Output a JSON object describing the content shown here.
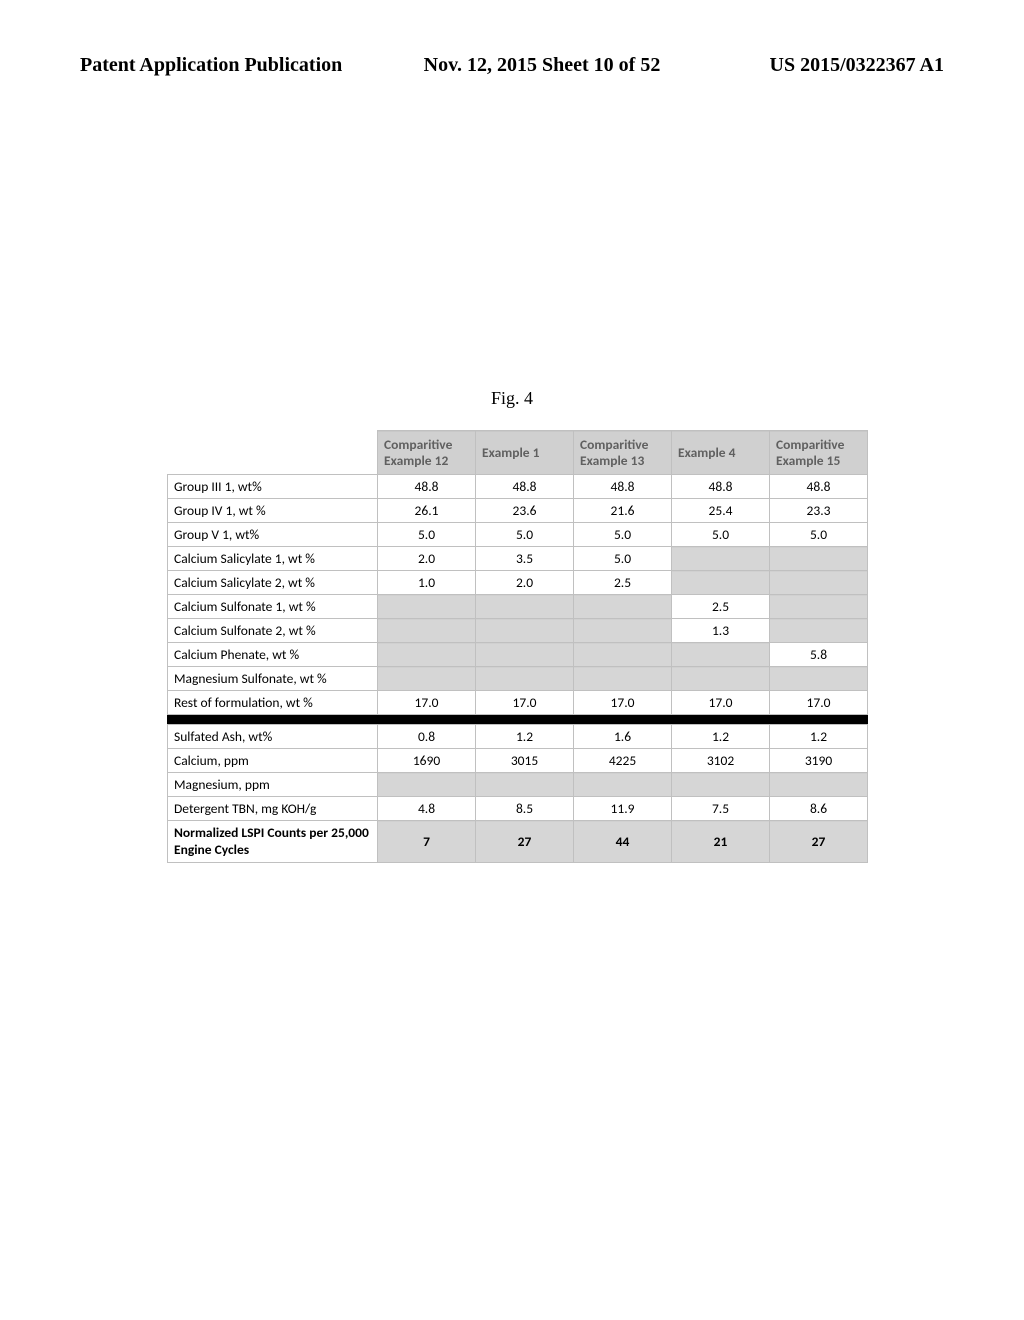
{
  "header": {
    "left": "Patent Application Publication",
    "center": "Nov. 12, 2015  Sheet 10 of 52",
    "right": "US 2015/0322367 A1"
  },
  "figure_caption": "Fig. 4",
  "table": {
    "columns": [
      {
        "label": ""
      },
      {
        "label": "Comparitive Example 12"
      },
      {
        "label": "Example 1"
      },
      {
        "label": "Comparitive Example 13"
      },
      {
        "label": "Example 4"
      },
      {
        "label": "Comparitive Example 15"
      }
    ],
    "rows": [
      {
        "label": "Group III 1, wt%",
        "cells": [
          "48.8",
          "48.8",
          "48.8",
          "48.8",
          "48.8"
        ]
      },
      {
        "label": "Group IV 1, wt %",
        "cells": [
          "26.1",
          "23.6",
          "21.6",
          "25.4",
          "23.3"
        ]
      },
      {
        "label": "Group V 1, wt%",
        "cells": [
          "5.0",
          "5.0",
          "5.0",
          "5.0",
          "5.0"
        ]
      },
      {
        "label": "Calcium Salicylate 1, wt %",
        "cells": [
          "2.0",
          "3.5",
          "5.0",
          null,
          null
        ]
      },
      {
        "label": "Calcium Salicylate 2, wt %",
        "cells": [
          "1.0",
          "2.0",
          "2.5",
          null,
          null
        ]
      },
      {
        "label": "Calcium Sulfonate 1, wt %",
        "cells": [
          null,
          null,
          null,
          "2.5",
          null
        ]
      },
      {
        "label": "Calcium Sulfonate 2, wt %",
        "cells": [
          null,
          null,
          null,
          "1.3",
          null
        ]
      },
      {
        "label": "Calcium Phenate, wt %",
        "cells": [
          null,
          null,
          null,
          null,
          "5.8"
        ]
      },
      {
        "label": "Magnesium Sulfonate, wt %",
        "cells": [
          null,
          null,
          null,
          null,
          null
        ]
      },
      {
        "label": "Rest of formulation, wt %",
        "cells": [
          "17.0",
          "17.0",
          "17.0",
          "17.0",
          "17.0"
        ]
      }
    ],
    "rows2": [
      {
        "label": "Sulfated Ash, wt%",
        "cells": [
          "0.8",
          "1.2",
          "1.6",
          "1.2",
          "1.2"
        ]
      },
      {
        "label": "Calcium, ppm",
        "cells": [
          "1690",
          "3015",
          "4225",
          "3102",
          "3190"
        ]
      },
      {
        "label": "Magnesium, ppm",
        "cells": [
          null,
          null,
          null,
          null,
          null
        ]
      },
      {
        "label": "Detergent TBN, mg KOH/g",
        "cells": [
          "4.8",
          "8.5",
          "11.9",
          "7.5",
          "8.6"
        ]
      }
    ],
    "result_row": {
      "label": "Normalized LSPI Counts per 25,000 Engine Cycles",
      "cells": [
        "7",
        "27",
        "44",
        "21",
        "27"
      ]
    }
  }
}
